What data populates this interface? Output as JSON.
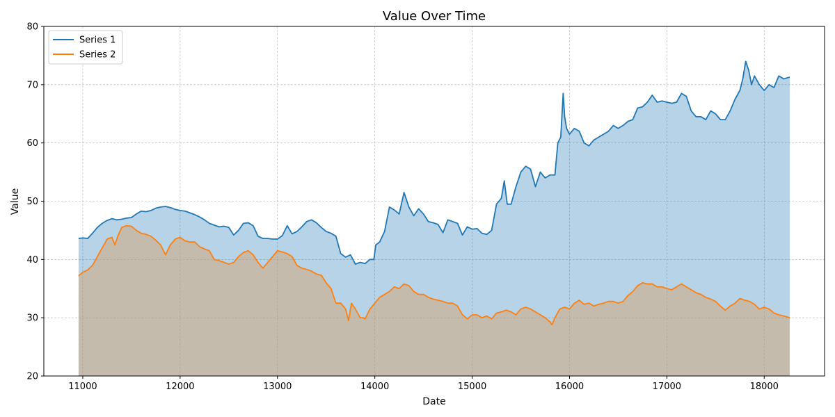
{
  "chart_data": {
    "type": "area",
    "title": "Value Over Time",
    "xlabel": "Date",
    "ylabel": "Value",
    "xlim": [
      10600,
      18620
    ],
    "ylim": [
      20,
      80
    ],
    "xticks": [
      11000,
      12000,
      13000,
      14000,
      15000,
      16000,
      17000,
      18000
    ],
    "yticks": [
      20,
      30,
      40,
      50,
      60,
      70,
      80
    ],
    "grid": true,
    "legend_position": "top-left",
    "x_range": [
      10957,
      18262
    ],
    "series": [
      {
        "name": "Series 1",
        "color": "#1f77b4",
        "fill_color": "#1f77b4",
        "fill_opacity": 0.32,
        "points": [
          [
            10957,
            43.6
          ],
          [
            11000,
            43.7
          ],
          [
            11050,
            43.6
          ],
          [
            11100,
            44.5
          ],
          [
            11150,
            45.5
          ],
          [
            11200,
            46.2
          ],
          [
            11250,
            46.7
          ],
          [
            11300,
            47.0
          ],
          [
            11350,
            46.8
          ],
          [
            11400,
            46.9
          ],
          [
            11450,
            47.1
          ],
          [
            11500,
            47.2
          ],
          [
            11550,
            47.8
          ],
          [
            11600,
            48.3
          ],
          [
            11650,
            48.2
          ],
          [
            11700,
            48.4
          ],
          [
            11750,
            48.8
          ],
          [
            11800,
            49.0
          ],
          [
            11850,
            49.1
          ],
          [
            11900,
            48.9
          ],
          [
            11950,
            48.6
          ],
          [
            12000,
            48.4
          ],
          [
            12050,
            48.3
          ],
          [
            12100,
            48.0
          ],
          [
            12150,
            47.7
          ],
          [
            12200,
            47.3
          ],
          [
            12250,
            46.8
          ],
          [
            12300,
            46.2
          ],
          [
            12350,
            45.9
          ],
          [
            12400,
            45.6
          ],
          [
            12450,
            45.7
          ],
          [
            12500,
            45.5
          ],
          [
            12550,
            44.2
          ],
          [
            12600,
            45.0
          ],
          [
            12650,
            46.2
          ],
          [
            12700,
            46.3
          ],
          [
            12750,
            45.8
          ],
          [
            12800,
            44.0
          ],
          [
            12850,
            43.6
          ],
          [
            12900,
            43.6
          ],
          [
            12950,
            43.5
          ],
          [
            13000,
            43.5
          ],
          [
            13050,
            44.1
          ],
          [
            13100,
            45.8
          ],
          [
            13150,
            44.4
          ],
          [
            13200,
            44.8
          ],
          [
            13250,
            45.6
          ],
          [
            13300,
            46.5
          ],
          [
            13350,
            46.8
          ],
          [
            13400,
            46.3
          ],
          [
            13450,
            45.5
          ],
          [
            13500,
            44.8
          ],
          [
            13550,
            44.5
          ],
          [
            13600,
            44.0
          ],
          [
            13650,
            41.0
          ],
          [
            13700,
            40.4
          ],
          [
            13750,
            40.8
          ],
          [
            13800,
            39.2
          ],
          [
            13850,
            39.5
          ],
          [
            13900,
            39.3
          ],
          [
            13950,
            40.0
          ],
          [
            13990,
            40.0
          ],
          [
            14010,
            42.5
          ],
          [
            14050,
            43.0
          ],
          [
            14100,
            44.8
          ],
          [
            14150,
            49.0
          ],
          [
            14200,
            48.5
          ],
          [
            14250,
            47.8
          ],
          [
            14300,
            51.5
          ],
          [
            14350,
            49.0
          ],
          [
            14400,
            47.5
          ],
          [
            14450,
            48.7
          ],
          [
            14500,
            47.8
          ],
          [
            14550,
            46.5
          ],
          [
            14600,
            46.3
          ],
          [
            14650,
            46.0
          ],
          [
            14700,
            44.6
          ],
          [
            14750,
            46.8
          ],
          [
            14800,
            46.5
          ],
          [
            14850,
            46.2
          ],
          [
            14900,
            44.2
          ],
          [
            14950,
            45.6
          ],
          [
            15000,
            45.2
          ],
          [
            15050,
            45.3
          ],
          [
            15100,
            44.5
          ],
          [
            15150,
            44.3
          ],
          [
            15200,
            45.0
          ],
          [
            15250,
            49.5
          ],
          [
            15300,
            50.5
          ],
          [
            15330,
            53.5
          ],
          [
            15360,
            49.5
          ],
          [
            15400,
            49.5
          ],
          [
            15450,
            52.5
          ],
          [
            15500,
            55.0
          ],
          [
            15550,
            56.0
          ],
          [
            15600,
            55.5
          ],
          [
            15650,
            52.5
          ],
          [
            15700,
            55.0
          ],
          [
            15750,
            54.0
          ],
          [
            15800,
            54.5
          ],
          [
            15850,
            54.5
          ],
          [
            15880,
            60.0
          ],
          [
            15910,
            61.0
          ],
          [
            15935,
            68.5
          ],
          [
            15950,
            64.5
          ],
          [
            15970,
            62.5
          ],
          [
            16000,
            61.5
          ],
          [
            16050,
            62.5
          ],
          [
            16100,
            62.0
          ],
          [
            16150,
            60.0
          ],
          [
            16200,
            59.5
          ],
          [
            16250,
            60.5
          ],
          [
            16300,
            61.0
          ],
          [
            16350,
            61.5
          ],
          [
            16400,
            62.0
          ],
          [
            16450,
            63.0
          ],
          [
            16500,
            62.5
          ],
          [
            16550,
            63.0
          ],
          [
            16600,
            63.7
          ],
          [
            16650,
            64.0
          ],
          [
            16700,
            66.0
          ],
          [
            16750,
            66.2
          ],
          [
            16800,
            67.0
          ],
          [
            16850,
            68.2
          ],
          [
            16900,
            67.0
          ],
          [
            16950,
            67.2
          ],
          [
            17000,
            67.0
          ],
          [
            17050,
            66.8
          ],
          [
            17100,
            67.0
          ],
          [
            17150,
            68.5
          ],
          [
            17200,
            68.0
          ],
          [
            17250,
            65.5
          ],
          [
            17300,
            64.5
          ],
          [
            17350,
            64.5
          ],
          [
            17400,
            64.0
          ],
          [
            17450,
            65.5
          ],
          [
            17500,
            65.0
          ],
          [
            17550,
            64.0
          ],
          [
            17600,
            64.0
          ],
          [
            17650,
            65.5
          ],
          [
            17700,
            67.5
          ],
          [
            17750,
            69.0
          ],
          [
            17780,
            71.0
          ],
          [
            17810,
            74.0
          ],
          [
            17840,
            72.5
          ],
          [
            17870,
            70.0
          ],
          [
            17900,
            71.5
          ],
          [
            17950,
            70.0
          ],
          [
            18000,
            69.0
          ],
          [
            18050,
            70.0
          ],
          [
            18100,
            69.5
          ],
          [
            18150,
            71.5
          ],
          [
            18200,
            71.0
          ],
          [
            18262,
            71.3
          ]
        ]
      },
      {
        "name": "Series 2",
        "color": "#ff7f0e",
        "fill_color": "#d4a373",
        "fill_opacity": 0.5,
        "points": [
          [
            10957,
            37.2
          ],
          [
            11000,
            37.8
          ],
          [
            11050,
            38.2
          ],
          [
            11100,
            39.0
          ],
          [
            11150,
            40.5
          ],
          [
            11200,
            42.0
          ],
          [
            11250,
            43.5
          ],
          [
            11300,
            43.8
          ],
          [
            11330,
            42.5
          ],
          [
            11360,
            44.0
          ],
          [
            11400,
            45.5
          ],
          [
            11450,
            45.8
          ],
          [
            11500,
            45.7
          ],
          [
            11550,
            45.0
          ],
          [
            11600,
            44.5
          ],
          [
            11650,
            44.3
          ],
          [
            11700,
            44.0
          ],
          [
            11750,
            43.3
          ],
          [
            11800,
            42.5
          ],
          [
            11850,
            40.8
          ],
          [
            11900,
            42.5
          ],
          [
            11950,
            43.5
          ],
          [
            12000,
            43.8
          ],
          [
            12050,
            43.2
          ],
          [
            12100,
            43.0
          ],
          [
            12150,
            43.0
          ],
          [
            12200,
            42.2
          ],
          [
            12250,
            41.8
          ],
          [
            12300,
            41.5
          ],
          [
            12350,
            40.0
          ],
          [
            12400,
            39.8
          ],
          [
            12450,
            39.5
          ],
          [
            12500,
            39.2
          ],
          [
            12550,
            39.5
          ],
          [
            12600,
            40.5
          ],
          [
            12650,
            41.2
          ],
          [
            12700,
            41.5
          ],
          [
            12750,
            40.8
          ],
          [
            12800,
            39.5
          ],
          [
            12850,
            38.5
          ],
          [
            12900,
            39.5
          ],
          [
            12950,
            40.5
          ],
          [
            13000,
            41.5
          ],
          [
            13050,
            41.3
          ],
          [
            13100,
            41.0
          ],
          [
            13150,
            40.5
          ],
          [
            13200,
            39.0
          ],
          [
            13250,
            38.5
          ],
          [
            13300,
            38.3
          ],
          [
            13350,
            38.0
          ],
          [
            13400,
            37.5
          ],
          [
            13450,
            37.3
          ],
          [
            13500,
            36.0
          ],
          [
            13550,
            35.0
          ],
          [
            13600,
            32.5
          ],
          [
            13650,
            32.5
          ],
          [
            13700,
            31.5
          ],
          [
            13730,
            29.5
          ],
          [
            13760,
            32.5
          ],
          [
            13800,
            31.5
          ],
          [
            13850,
            30.0
          ],
          [
            13880,
            30.0
          ],
          [
            13900,
            29.8
          ],
          [
            13950,
            31.5
          ],
          [
            14000,
            32.5
          ],
          [
            14050,
            33.5
          ],
          [
            14100,
            34.0
          ],
          [
            14150,
            34.5
          ],
          [
            14200,
            35.3
          ],
          [
            14250,
            35.0
          ],
          [
            14300,
            35.8
          ],
          [
            14350,
            35.5
          ],
          [
            14400,
            34.5
          ],
          [
            14450,
            34.0
          ],
          [
            14500,
            34.0
          ],
          [
            14550,
            33.5
          ],
          [
            14600,
            33.2
          ],
          [
            14650,
            33.0
          ],
          [
            14700,
            32.8
          ],
          [
            14750,
            32.5
          ],
          [
            14800,
            32.5
          ],
          [
            14850,
            32.0
          ],
          [
            14900,
            30.5
          ],
          [
            14950,
            29.8
          ],
          [
            15000,
            30.5
          ],
          [
            15050,
            30.5
          ],
          [
            15100,
            30.0
          ],
          [
            15150,
            30.3
          ],
          [
            15200,
            29.8
          ],
          [
            15250,
            30.8
          ],
          [
            15300,
            31.0
          ],
          [
            15350,
            31.3
          ],
          [
            15400,
            31.0
          ],
          [
            15450,
            30.5
          ],
          [
            15500,
            31.5
          ],
          [
            15550,
            31.8
          ],
          [
            15600,
            31.5
          ],
          [
            15650,
            31.0
          ],
          [
            15700,
            30.5
          ],
          [
            15750,
            30.0
          ],
          [
            15800,
            29.3
          ],
          [
            15820,
            28.8
          ],
          [
            15850,
            30.0
          ],
          [
            15900,
            31.5
          ],
          [
            15950,
            31.8
          ],
          [
            16000,
            31.5
          ],
          [
            16050,
            32.5
          ],
          [
            16100,
            33.0
          ],
          [
            16150,
            32.3
          ],
          [
            16200,
            32.5
          ],
          [
            16250,
            32.0
          ],
          [
            16300,
            32.3
          ],
          [
            16350,
            32.5
          ],
          [
            16400,
            32.8
          ],
          [
            16450,
            32.8
          ],
          [
            16500,
            32.5
          ],
          [
            16550,
            32.8
          ],
          [
            16600,
            33.8
          ],
          [
            16650,
            34.5
          ],
          [
            16700,
            35.5
          ],
          [
            16750,
            36.0
          ],
          [
            16800,
            35.8
          ],
          [
            16850,
            35.8
          ],
          [
            16900,
            35.3
          ],
          [
            16950,
            35.3
          ],
          [
            17000,
            35.0
          ],
          [
            17050,
            34.8
          ],
          [
            17100,
            35.3
          ],
          [
            17150,
            35.8
          ],
          [
            17200,
            35.3
          ],
          [
            17250,
            34.8
          ],
          [
            17300,
            34.3
          ],
          [
            17350,
            34.0
          ],
          [
            17400,
            33.5
          ],
          [
            17450,
            33.2
          ],
          [
            17500,
            32.8
          ],
          [
            17550,
            32.0
          ],
          [
            17600,
            31.3
          ],
          [
            17650,
            32.0
          ],
          [
            17700,
            32.5
          ],
          [
            17750,
            33.3
          ],
          [
            17800,
            33.0
          ],
          [
            17850,
            32.8
          ],
          [
            17900,
            32.3
          ],
          [
            17950,
            31.5
          ],
          [
            18000,
            31.8
          ],
          [
            18050,
            31.5
          ],
          [
            18100,
            30.8
          ],
          [
            18150,
            30.5
          ],
          [
            18200,
            30.3
          ],
          [
            18262,
            30.0
          ]
        ]
      }
    ]
  }
}
